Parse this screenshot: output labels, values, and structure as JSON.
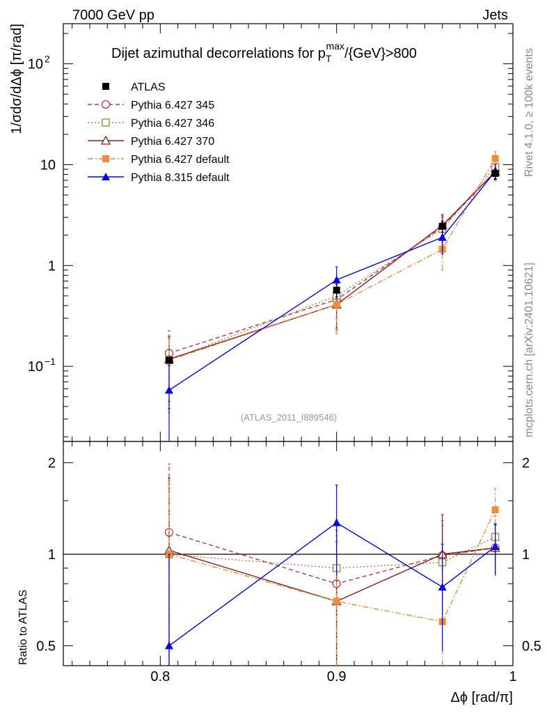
{
  "header": {
    "left": "7000 GeV pp",
    "right": "Jets"
  },
  "side": {
    "rivet": "Rivet 4.1.0, ≥ 100k events",
    "mcplots": "mcplots.cern.ch [arXiv:2401.10621]"
  },
  "watermark": "(ATLAS_2011_I889546)",
  "chart_data": {
    "type": "line",
    "title": "Dijet azimuthal decorrelations for p_T^max/{GeV}>800",
    "title_parts": {
      "prefix": "Dijet azimuthal decorrelations for p",
      "sub": "T",
      "sup": "max",
      "suffix": "/{GeV}>800"
    },
    "xlabel": "Δϕ [rad/π]",
    "ylabel": "1/σdσ/dΔϕ [π/rad]",
    "ratio_ylabel": "Ratio to ATLAS",
    "xlim": [
      0.745,
      1.0
    ],
    "ylim": [
      0.018,
      250
    ],
    "yscale": "log",
    "ratio_ylim": [
      0.43,
      2.35
    ],
    "x_ticks": [
      "0.8",
      "0.9",
      "1"
    ],
    "y_ticks": [
      {
        "value": 0.1,
        "base": "10",
        "exp": "−1"
      },
      {
        "value": 1,
        "base": "1",
        "exp": ""
      },
      {
        "value": 10,
        "base": "10",
        "exp": ""
      },
      {
        "value": 100,
        "base": "10",
        "exp": "2"
      }
    ],
    "ratio_ticks": [
      "0.5",
      "1",
      "2"
    ],
    "x": [
      0.805,
      0.9,
      0.96,
      0.99
    ],
    "series": [
      {
        "name": "ATLAS",
        "color": "#000000",
        "marker": "square-filled",
        "dash": "none",
        "line": false,
        "values": [
          0.115,
          0.57,
          2.45,
          8.2
        ],
        "err": [
          0.005,
          0.08,
          0.3,
          0.9
        ],
        "ratio": [
          1.0,
          1.0,
          1.0,
          1.0
        ],
        "ratio_err": [
          0,
          0,
          0,
          0
        ]
      },
      {
        "name": "Pythia 6.427 345",
        "color": "#b03a48",
        "marker": "circle-open",
        "dash": "6,4",
        "values": [
          0.135,
          0.46,
          2.4,
          8.6
        ],
        "err": [
          0.09,
          0.22,
          0.7,
          1.5
        ],
        "ratio": [
          1.18,
          0.8,
          0.99,
          1.05
        ],
        "ratio_err": [
          0.8,
          0.4,
          0.3,
          0.2
        ]
      },
      {
        "name": "Pythia 6.427 346",
        "color": "#a08040",
        "marker": "square-open",
        "dash": "2,3",
        "values": [
          0.115,
          0.5,
          2.3,
          9.5
        ],
        "err": [
          0.08,
          0.2,
          0.7,
          1.6
        ],
        "ratio": [
          1.0,
          0.9,
          0.94,
          1.14
        ],
        "ratio_err": [
          0.7,
          0.4,
          0.3,
          0.2
        ]
      },
      {
        "name": "Pythia 6.427 370",
        "color": "#8b1a1a",
        "marker": "triangle-open",
        "dash": "none",
        "values": [
          0.118,
          0.41,
          2.5,
          8.5
        ],
        "err": [
          0.08,
          0.18,
          0.7,
          1.5
        ],
        "ratio": [
          1.03,
          0.7,
          1.0,
          1.05
        ],
        "ratio_err": [
          0.75,
          0.4,
          0.35,
          0.2
        ]
      },
      {
        "name": "Pythia 6.427 default",
        "color": "#f28a3a",
        "marker": "square-filled",
        "dash": "8,3,2,3",
        "values": [
          0.115,
          0.41,
          1.45,
          11.5
        ],
        "err": [
          0.08,
          0.2,
          0.55,
          2.0
        ],
        "ratio": [
          1.0,
          0.7,
          0.6,
          1.4
        ],
        "ratio_err": [
          0.75,
          0.45,
          0.3,
          0.25
        ]
      },
      {
        "name": "Pythia 8.315 default",
        "color": "#0000ee",
        "marker": "triangle-filled",
        "dash": "none",
        "values": [
          0.058,
          0.72,
          1.9,
          8.6
        ],
        "err": [
          0.045,
          0.25,
          0.6,
          1.4
        ],
        "ratio": [
          0.5,
          1.27,
          0.78,
          1.06
        ],
        "ratio_err": [
          0.5,
          0.42,
          0.3,
          0.2
        ]
      }
    ]
  }
}
